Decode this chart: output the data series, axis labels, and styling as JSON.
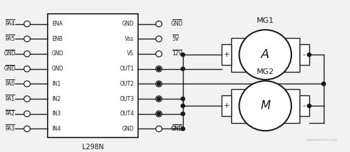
{
  "bg_color": "#f2f2f2",
  "ic_label": "L298N",
  "left_pins": [
    "PA4",
    "PA5",
    "GND",
    "GND",
    "PA0",
    "PA1",
    "PA2",
    "PA3"
  ],
  "left_ic_pins": [
    "ENA",
    "ENB",
    "GND",
    "GND",
    "IN1",
    "IN2",
    "IN3",
    "IN4"
  ],
  "right_ic_pins": [
    "GND",
    "Vss",
    "VS",
    "OUT1",
    "OUT2",
    "OUT3",
    "OUT4",
    "GND"
  ],
  "right_labels": [
    "GND",
    "5V",
    "12V",
    null,
    null,
    null,
    null,
    "GND"
  ],
  "right_has_dot": [
    false,
    false,
    false,
    true,
    true,
    true,
    true,
    false
  ],
  "motor1_label": "MG1",
  "motor2_label": "MG2",
  "motor1_inner": "A",
  "motor2_inner": "M",
  "line_color": "#1a1a1a",
  "fill_color": "#ffffff",
  "watermark": "www.elecfans.com"
}
